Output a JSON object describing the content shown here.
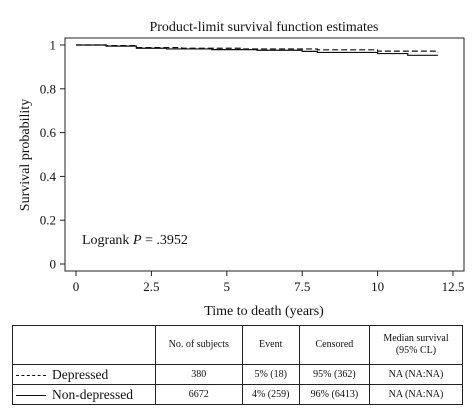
{
  "chart_data": {
    "type": "line",
    "title": "Product-limit survival function estimates",
    "xlabel": "Time to death (years)",
    "ylabel": "Survival probability",
    "xlim": [
      0,
      12.5
    ],
    "ylim": [
      0,
      1
    ],
    "xticks": [
      "0",
      "2.5",
      "5",
      "7.5",
      "10",
      "12.5"
    ],
    "xtick_values": [
      0,
      2.5,
      5,
      7.5,
      10,
      12.5
    ],
    "yticks": [
      "0",
      "0.2",
      "0.4",
      "0.6",
      "0.8",
      "1"
    ],
    "ytick_values": [
      0,
      0.2,
      0.4,
      0.6,
      0.8,
      1
    ],
    "annotation": {
      "prefix": "Logrank ",
      "p_symbol": "P",
      "suffix": " = .3952"
    },
    "series": [
      {
        "name": "Depressed",
        "style": "dashed",
        "color": "#111111",
        "points": [
          [
            0,
            1.0
          ],
          [
            1.0,
            0.997
          ],
          [
            2.0,
            0.988
          ],
          [
            3.5,
            0.985
          ],
          [
            5.5,
            0.982
          ],
          [
            8.0,
            0.978
          ],
          [
            10.0,
            0.972
          ],
          [
            12.0,
            0.966
          ]
        ]
      },
      {
        "name": "Non-depressed",
        "style": "solid",
        "color": "#111111",
        "points": [
          [
            0,
            1.0
          ],
          [
            1.0,
            0.995
          ],
          [
            2.0,
            0.985
          ],
          [
            3.0,
            0.982
          ],
          [
            4.5,
            0.979
          ],
          [
            6.0,
            0.976
          ],
          [
            7.5,
            0.971
          ],
          [
            8.0,
            0.966
          ],
          [
            10.0,
            0.961
          ],
          [
            11.0,
            0.953
          ],
          [
            12.0,
            0.953
          ]
        ]
      }
    ]
  },
  "table": {
    "headers": [
      "No. of subjects",
      "Event",
      "Censored",
      "Median survival",
      "(95% CL)"
    ],
    "rows": [
      {
        "label": "Depressed",
        "line": "dashed",
        "cells": [
          "380",
          "5% (18)",
          "95% (362)",
          "NA (NA:NA)"
        ]
      },
      {
        "label": "Non-depressed",
        "line": "solid",
        "cells": [
          "6672",
          "4% (259)",
          "96% (6413)",
          "NA (NA:NA)"
        ]
      }
    ]
  }
}
